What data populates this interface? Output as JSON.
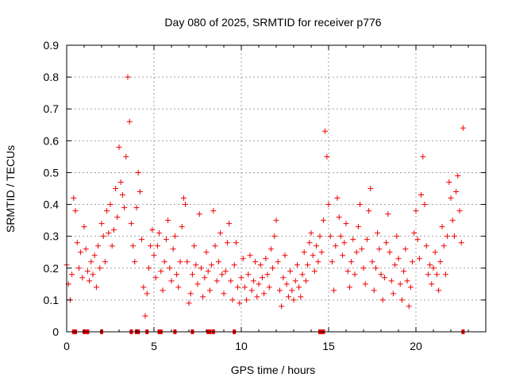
{
  "chart_data": {
    "type": "scatter",
    "title": "Day 080 of 2025, SRMTID for receiver p776",
    "xlabel": "GPS time / hours",
    "ylabel": "SRMTID / TECUs",
    "xlim": [
      0,
      24
    ],
    "ylim": [
      0,
      0.9
    ],
    "xticks": [
      0,
      5,
      10,
      15,
      20
    ],
    "yticks": [
      0,
      0.1,
      0.2,
      0.3,
      0.4,
      0.5,
      0.6,
      0.7,
      0.8,
      0.9
    ],
    "xtick_labels": [
      "0",
      "5",
      "10",
      "15",
      "20"
    ],
    "ytick_labels": [
      "0",
      "0.1",
      "0.2",
      "0.3",
      "0.4",
      "0.5",
      "0.6",
      "0.7",
      "0.8",
      "0.9"
    ],
    "grid": true,
    "marker": "+",
    "color": "#ee0000",
    "series": [
      {
        "name": "SRMTID",
        "points": [
          [
            0.0,
            0.21
          ],
          [
            0.1,
            0.15
          ],
          [
            0.2,
            0.1
          ],
          [
            0.3,
            0.18
          ],
          [
            0.4,
            0.42
          ],
          [
            0.5,
            0.38
          ],
          [
            0.6,
            0.28
          ],
          [
            0.7,
            0.2
          ],
          [
            0.8,
            0.25
          ],
          [
            0.9,
            0.17
          ],
          [
            1.0,
            0.33
          ],
          [
            1.1,
            0.26
          ],
          [
            1.2,
            0.19
          ],
          [
            1.3,
            0.16
          ],
          [
            1.4,
            0.22
          ],
          [
            1.5,
            0.18
          ],
          [
            1.6,
            0.24
          ],
          [
            1.7,
            0.14
          ],
          [
            1.8,
            0.27
          ],
          [
            1.9,
            0.2
          ],
          [
            2.0,
            0.34
          ],
          [
            2.1,
            0.3
          ],
          [
            2.2,
            0.22
          ],
          [
            2.3,
            0.38
          ],
          [
            2.4,
            0.31
          ],
          [
            2.5,
            0.4
          ],
          [
            2.6,
            0.27
          ],
          [
            2.7,
            0.32
          ],
          [
            2.8,
            0.45
          ],
          [
            2.9,
            0.36
          ],
          [
            3.0,
            0.58
          ],
          [
            3.1,
            0.47
          ],
          [
            3.2,
            0.43
          ],
          [
            3.3,
            0.39
          ],
          [
            3.4,
            0.55
          ],
          [
            3.5,
            0.8
          ],
          [
            3.6,
            0.66
          ],
          [
            3.7,
            0.34
          ],
          [
            3.8,
            0.27
          ],
          [
            3.9,
            0.22
          ],
          [
            4.0,
            0.39
          ],
          [
            4.1,
            0.5
          ],
          [
            4.2,
            0.44
          ],
          [
            4.3,
            0.29
          ],
          [
            4.4,
            0.14
          ],
          [
            4.5,
            0.05
          ],
          [
            4.6,
            0.12
          ],
          [
            4.7,
            0.2
          ],
          [
            4.8,
            0.27
          ],
          [
            4.9,
            0.32
          ],
          [
            5.0,
            0.24
          ],
          [
            5.1,
            0.17
          ],
          [
            5.2,
            0.27
          ],
          [
            5.3,
            0.31
          ],
          [
            5.4,
            0.19
          ],
          [
            5.5,
            0.13
          ],
          [
            5.6,
            0.22
          ],
          [
            5.7,
            0.29
          ],
          [
            5.8,
            0.35
          ],
          [
            5.9,
            0.2
          ],
          [
            6.0,
            0.16
          ],
          [
            6.1,
            0.26
          ],
          [
            6.2,
            0.3
          ],
          [
            6.3,
            0.18
          ],
          [
            6.4,
            0.14
          ],
          [
            6.5,
            0.22
          ],
          [
            6.6,
            0.33
          ],
          [
            6.7,
            0.42
          ],
          [
            6.8,
            0.4
          ],
          [
            6.9,
            0.22
          ],
          [
            7.0,
            0.09
          ],
          [
            7.1,
            0.12
          ],
          [
            7.2,
            0.18
          ],
          [
            7.3,
            0.27
          ],
          [
            7.4,
            0.21
          ],
          [
            7.5,
            0.15
          ],
          [
            7.6,
            0.37
          ],
          [
            7.7,
            0.2
          ],
          [
            7.8,
            0.11
          ],
          [
            7.9,
            0.17
          ],
          [
            8.0,
            0.25
          ],
          [
            8.1,
            0.19
          ],
          [
            8.2,
            0.13
          ],
          [
            8.3,
            0.21
          ],
          [
            8.4,
            0.38
          ],
          [
            8.5,
            0.27
          ],
          [
            8.6,
            0.16
          ],
          [
            8.7,
            0.22
          ],
          [
            8.8,
            0.31
          ],
          [
            8.9,
            0.18
          ],
          [
            9.0,
            0.12
          ],
          [
            9.1,
            0.19
          ],
          [
            9.2,
            0.28
          ],
          [
            9.3,
            0.34
          ],
          [
            9.4,
            0.16
          ],
          [
            9.5,
            0.1
          ],
          [
            9.6,
            0.21
          ],
          [
            9.7,
            0.28
          ],
          [
            9.8,
            0.14
          ],
          [
            9.9,
            0.09
          ],
          [
            10.0,
            0.17
          ],
          [
            10.1,
            0.23
          ],
          [
            10.2,
            0.14
          ],
          [
            10.3,
            0.1
          ],
          [
            10.4,
            0.18
          ],
          [
            10.5,
            0.24
          ],
          [
            10.6,
            0.13
          ],
          [
            10.7,
            0.16
          ],
          [
            10.8,
            0.22
          ],
          [
            10.9,
            0.11
          ],
          [
            11.0,
            0.15
          ],
          [
            11.1,
            0.21
          ],
          [
            11.2,
            0.17
          ],
          [
            11.3,
            0.12
          ],
          [
            11.4,
            0.23
          ],
          [
            11.5,
            0.18
          ],
          [
            11.6,
            0.14
          ],
          [
            11.7,
            0.26
          ],
          [
            11.8,
            0.2
          ],
          [
            11.9,
            0.3
          ],
          [
            12.0,
            0.35
          ],
          [
            12.1,
            0.22
          ],
          [
            12.2,
            0.13
          ],
          [
            12.3,
            0.08
          ],
          [
            12.4,
            0.17
          ],
          [
            12.5,
            0.24
          ],
          [
            12.6,
            0.15
          ],
          [
            12.7,
            0.11
          ],
          [
            12.8,
            0.19
          ],
          [
            12.9,
            0.13
          ],
          [
            13.0,
            0.1
          ],
          [
            13.1,
            0.16
          ],
          [
            13.2,
            0.21
          ],
          [
            13.3,
            0.14
          ],
          [
            13.4,
            0.11
          ],
          [
            13.5,
            0.18
          ],
          [
            13.6,
            0.25
          ],
          [
            13.7,
            0.16
          ],
          [
            13.8,
            0.21
          ],
          [
            13.9,
            0.28
          ],
          [
            14.0,
            0.31
          ],
          [
            14.1,
            0.24
          ],
          [
            14.2,
            0.19
          ],
          [
            14.3,
            0.27
          ],
          [
            14.4,
            0.22
          ],
          [
            14.5,
            0.3
          ],
          [
            14.6,
            0.25
          ],
          [
            14.7,
            0.35
          ],
          [
            14.8,
            0.63
          ],
          [
            14.9,
            0.55
          ],
          [
            15.0,
            0.4
          ],
          [
            15.1,
            0.3
          ],
          [
            15.2,
            0.22
          ],
          [
            15.3,
            0.13
          ],
          [
            15.4,
            0.27
          ],
          [
            15.5,
            0.42
          ],
          [
            15.6,
            0.36
          ],
          [
            15.7,
            0.3
          ],
          [
            15.8,
            0.24
          ],
          [
            15.9,
            0.28
          ],
          [
            16.0,
            0.34
          ],
          [
            16.1,
            0.19
          ],
          [
            16.2,
            0.14
          ],
          [
            16.3,
            0.22
          ],
          [
            16.4,
            0.29
          ],
          [
            16.5,
            0.18
          ],
          [
            16.6,
            0.25
          ],
          [
            16.7,
            0.33
          ],
          [
            16.8,
            0.4
          ],
          [
            16.9,
            0.26
          ],
          [
            17.0,
            0.2
          ],
          [
            17.1,
            0.15
          ],
          [
            17.2,
            0.29
          ],
          [
            17.3,
            0.38
          ],
          [
            17.4,
            0.45
          ],
          [
            17.5,
            0.22
          ],
          [
            17.6,
            0.13
          ],
          [
            17.7,
            0.2
          ],
          [
            17.8,
            0.31
          ],
          [
            17.9,
            0.26
          ],
          [
            18.0,
            0.18
          ],
          [
            18.1,
            0.1
          ],
          [
            18.2,
            0.17
          ],
          [
            18.3,
            0.28
          ],
          [
            18.4,
            0.37
          ],
          [
            18.5,
            0.25
          ],
          [
            18.6,
            0.16
          ],
          [
            18.7,
            0.12
          ],
          [
            18.8,
            0.21
          ],
          [
            18.9,
            0.3
          ],
          [
            19.0,
            0.23
          ],
          [
            19.1,
            0.15
          ],
          [
            19.2,
            0.1
          ],
          [
            19.3,
            0.19
          ],
          [
            19.4,
            0.26
          ],
          [
            19.5,
            0.16
          ],
          [
            19.6,
            0.08
          ],
          [
            19.7,
            0.14
          ],
          [
            19.8,
            0.22
          ],
          [
            19.9,
            0.31
          ],
          [
            20.0,
            0.38
          ],
          [
            20.1,
            0.29
          ],
          [
            20.2,
            0.23
          ],
          [
            20.3,
            0.43
          ],
          [
            20.4,
            0.55
          ],
          [
            20.5,
            0.4
          ],
          [
            20.6,
            0.27
          ],
          [
            20.7,
            0.18
          ],
          [
            20.8,
            0.21
          ],
          [
            20.9,
            0.15
          ],
          [
            21.0,
            0.2
          ],
          [
            21.1,
            0.25
          ],
          [
            21.2,
            0.18
          ],
          [
            21.3,
            0.13
          ],
          [
            21.4,
            0.22
          ],
          [
            21.5,
            0.33
          ],
          [
            21.6,
            0.27
          ],
          [
            21.7,
            0.18
          ],
          [
            21.8,
            0.3
          ],
          [
            21.9,
            0.47
          ],
          [
            22.0,
            0.42
          ],
          [
            22.1,
            0.35
          ],
          [
            22.2,
            0.3
          ],
          [
            22.3,
            0.44
          ],
          [
            22.4,
            0.49
          ],
          [
            22.5,
            0.38
          ],
          [
            22.6,
            0.28
          ],
          [
            22.7,
            0.64
          ]
        ]
      }
    ],
    "zero_points_x": [
      0.4,
      0.5,
      1.0,
      1.1,
      1.2,
      2.0,
      3.7,
      4.0,
      4.1,
      4.6,
      5.3,
      5.4,
      6.2,
      7.2,
      8.1,
      8.2,
      8.4,
      9.6,
      14.5,
      14.6,
      14.7,
      22.7
    ]
  }
}
